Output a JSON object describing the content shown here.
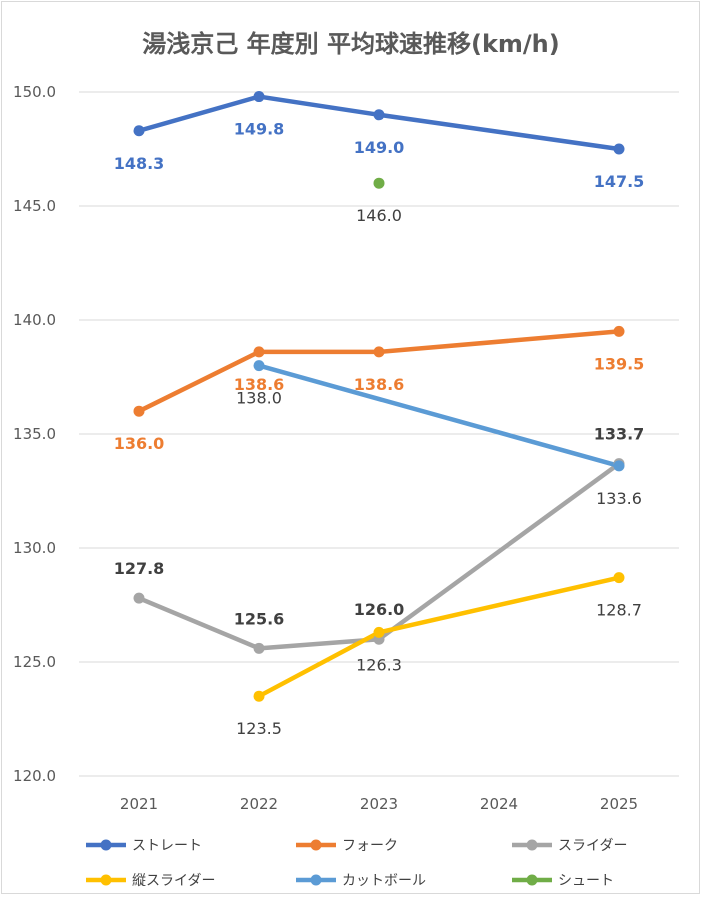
{
  "chart_data": {
    "type": "line",
    "title": "湯浅京己 年度別 平均球速推移(km/h)",
    "categories": [
      "2021",
      "2022",
      "2023",
      "2024",
      "2025"
    ],
    "y_ticks": [
      "120.0",
      "125.0",
      "130.0",
      "135.0",
      "140.0",
      "145.0",
      "150.0"
    ],
    "ylim": [
      120,
      150
    ],
    "ygrid": true,
    "legend_position": "bottom",
    "series": [
      {
        "name": "ストレート",
        "color": "#4472C4",
        "values": [
          148.3,
          149.8,
          149.0,
          null,
          147.5
        ],
        "labels": [
          "148.3",
          "149.8",
          "149.0",
          null,
          "147.5"
        ],
        "label_color": "#4472C4",
        "label_pos": "below"
      },
      {
        "name": "フォーク",
        "color": "#ED7D31",
        "values": [
          136.0,
          138.6,
          138.6,
          null,
          139.5
        ],
        "labels": [
          "136.0",
          "138.6",
          "138.6",
          null,
          "139.5"
        ],
        "label_color": "#ED7D31",
        "label_pos": "below"
      },
      {
        "name": "スライダー",
        "color": "#A5A5A5",
        "values": [
          127.8,
          125.6,
          126.0,
          null,
          133.7
        ],
        "labels": [
          "127.8",
          "125.6",
          "126.0",
          null,
          "133.7"
        ],
        "label_color": "#404040",
        "label_pos": "above"
      },
      {
        "name": "縦スライダー",
        "color": "#FFC000",
        "values": [
          null,
          123.5,
          126.3,
          null,
          128.7
        ],
        "labels": [
          null,
          "123.5",
          "126.3",
          null,
          "128.7"
        ],
        "label_color": "#404040",
        "label_pos": "below"
      },
      {
        "name": "カットボール",
        "color": "#5B9BD5",
        "values": [
          null,
          138.0,
          null,
          null,
          133.6
        ],
        "labels": [
          null,
          "138.0",
          null,
          null,
          "133.6"
        ],
        "label_color": "#404040",
        "label_pos": "below"
      },
      {
        "name": "シュート",
        "color": "#70AD47",
        "values": [
          null,
          null,
          146.0,
          null,
          null
        ],
        "labels": [
          null,
          null,
          "146.0",
          null,
          null
        ],
        "label_color": "#404040",
        "label_pos": "below"
      }
    ]
  }
}
